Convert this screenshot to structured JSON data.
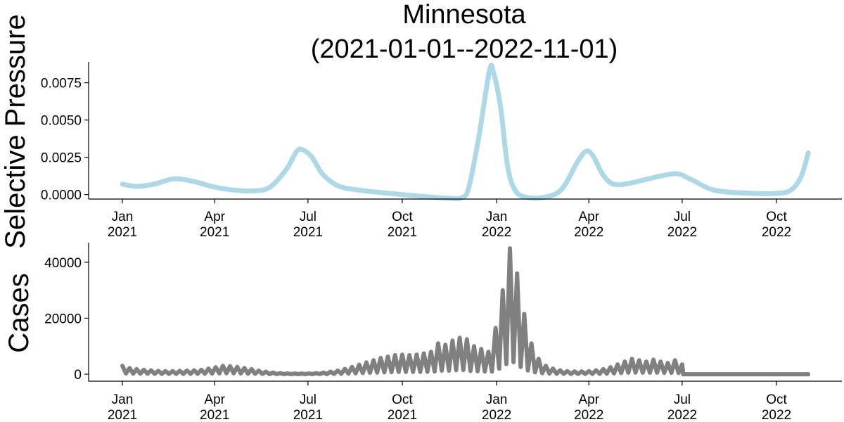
{
  "title": [
    "Minnesota",
    "(2021-01-01--2022-11-01)"
  ],
  "colors": {
    "pressure": "#add8e6",
    "cases": "#808080",
    "axis": "#000000"
  },
  "chart_data": [
    {
      "type": "line",
      "ylabel": "Selective Pressure",
      "ylim": [
        -0.0003,
        0.0089
      ],
      "yticks": [
        "0.0000",
        "0.0025",
        "0.0050",
        "0.0075"
      ],
      "xticks": [
        {
          "date": "2021-01-01",
          "label": [
            "Jan",
            "2021"
          ]
        },
        {
          "date": "2021-04-01",
          "label": [
            "Apr",
            "2021"
          ]
        },
        {
          "date": "2021-07-01",
          "label": [
            "Jul",
            "2021"
          ]
        },
        {
          "date": "2021-10-01",
          "label": [
            "Oct",
            "2021"
          ]
        },
        {
          "date": "2022-01-01",
          "label": [
            "Jan",
            "2022"
          ]
        },
        {
          "date": "2022-04-01",
          "label": [
            "Apr",
            "2022"
          ]
        },
        {
          "date": "2022-07-01",
          "label": [
            "Jul",
            "2022"
          ]
        },
        {
          "date": "2022-10-01",
          "label": [
            "Oct",
            "2022"
          ]
        }
      ],
      "series": [
        {
          "color": "#add8e6",
          "points": [
            [
              "2021-01-01",
              0.0007
            ],
            [
              "2021-01-15",
              0.00055
            ],
            [
              "2021-02-01",
              0.0007
            ],
            [
              "2021-02-20",
              0.00105
            ],
            [
              "2021-03-10",
              0.0009
            ],
            [
              "2021-04-01",
              0.0005
            ],
            [
              "2021-04-20",
              0.0003
            ],
            [
              "2021-05-10",
              0.00025
            ],
            [
              "2021-05-25",
              0.0005
            ],
            [
              "2021-06-10",
              0.0017
            ],
            [
              "2021-06-20",
              0.0029
            ],
            [
              "2021-06-26",
              0.003
            ],
            [
              "2021-07-05",
              0.0025
            ],
            [
              "2021-07-15",
              0.0014
            ],
            [
              "2021-07-30",
              0.0006
            ],
            [
              "2021-08-20",
              0.0003
            ],
            [
              "2021-10-01",
              0.0
            ],
            [
              "2021-11-15",
              -0.00025
            ],
            [
              "2021-11-28",
              -0.0002
            ],
            [
              "2021-12-05",
              0.0005
            ],
            [
              "2021-12-15",
              0.004
            ],
            [
              "2021-12-25",
              0.0083
            ],
            [
              "2021-12-29",
              0.0082
            ],
            [
              "2022-01-05",
              0.0058
            ],
            [
              "2022-01-12",
              0.0018
            ],
            [
              "2022-01-20",
              0.0002
            ],
            [
              "2022-02-01",
              -0.0002
            ],
            [
              "2022-02-15",
              -0.0002
            ],
            [
              "2022-03-01",
              0.0001
            ],
            [
              "2022-03-10",
              0.0008
            ],
            [
              "2022-03-20",
              0.0021
            ],
            [
              "2022-03-29",
              0.0029
            ],
            [
              "2022-04-05",
              0.0026
            ],
            [
              "2022-04-15",
              0.0013
            ],
            [
              "2022-04-25",
              0.0007
            ],
            [
              "2022-05-10",
              0.00075
            ],
            [
              "2022-06-01",
              0.0011
            ],
            [
              "2022-06-25",
              0.0014
            ],
            [
              "2022-07-10",
              0.001
            ],
            [
              "2022-08-01",
              0.0003
            ],
            [
              "2022-09-01",
              0.0001
            ],
            [
              "2022-10-01",
              8e-05
            ],
            [
              "2022-10-15",
              0.0003
            ],
            [
              "2022-10-25",
              0.0012
            ],
            [
              "2022-11-01",
              0.0028
            ]
          ]
        }
      ]
    },
    {
      "type": "line",
      "ylabel": "Cases",
      "ylim": [
        -2500,
        47000
      ],
      "yticks": [
        "0",
        "20000",
        "40000"
      ],
      "xticks": [
        {
          "date": "2021-01-01",
          "label": [
            "Jan",
            "2021"
          ]
        },
        {
          "date": "2021-04-01",
          "label": [
            "Apr",
            "2021"
          ]
        },
        {
          "date": "2021-07-01",
          "label": [
            "Jul",
            "2021"
          ]
        },
        {
          "date": "2021-10-01",
          "label": [
            "Oct",
            "2021"
          ]
        },
        {
          "date": "2022-01-01",
          "label": [
            "Jan",
            "2022"
          ]
        },
        {
          "date": "2022-04-01",
          "label": [
            "Apr",
            "2022"
          ]
        },
        {
          "date": "2022-07-01",
          "label": [
            "Jul",
            "2022"
          ]
        },
        {
          "date": "2022-10-01",
          "label": [
            "Oct",
            "2022"
          ]
        }
      ],
      "series": [
        {
          "color": "#808080",
          "description_of_pattern": "weekly reporting spikes",
          "weekly_peaks": [
            [
              "2021-01-01",
              3000
            ],
            [
              "2021-01-08",
              2200
            ],
            [
              "2021-01-15",
              1800
            ],
            [
              "2021-01-22",
              1600
            ],
            [
              "2021-01-29",
              1400
            ],
            [
              "2021-02-05",
              1200
            ],
            [
              "2021-02-12",
              1100
            ],
            [
              "2021-02-19",
              1100
            ],
            [
              "2021-02-26",
              1200
            ],
            [
              "2021-03-05",
              1300
            ],
            [
              "2021-03-12",
              1400
            ],
            [
              "2021-03-19",
              1600
            ],
            [
              "2021-03-26",
              2000
            ],
            [
              "2021-04-02",
              2500
            ],
            [
              "2021-04-09",
              3000
            ],
            [
              "2021-04-16",
              2900
            ],
            [
              "2021-04-23",
              2600
            ],
            [
              "2021-04-30",
              2200
            ],
            [
              "2021-05-07",
              1800
            ],
            [
              "2021-05-14",
              1300
            ],
            [
              "2021-05-21",
              900
            ],
            [
              "2021-05-28",
              600
            ],
            [
              "2021-06-04",
              400
            ],
            [
              "2021-06-11",
              300
            ],
            [
              "2021-06-18",
              250
            ],
            [
              "2021-06-25",
              250
            ],
            [
              "2021-07-02",
              300
            ],
            [
              "2021-07-09",
              400
            ],
            [
              "2021-07-16",
              600
            ],
            [
              "2021-07-23",
              900
            ],
            [
              "2021-07-30",
              1300
            ],
            [
              "2021-08-06",
              1900
            ],
            [
              "2021-08-13",
              2600
            ],
            [
              "2021-08-20",
              3400
            ],
            [
              "2021-08-27",
              4200
            ],
            [
              "2021-09-03",
              5000
            ],
            [
              "2021-09-10",
              5800
            ],
            [
              "2021-09-17",
              6300
            ],
            [
              "2021-09-24",
              6800
            ],
            [
              "2021-10-01",
              7000
            ],
            [
              "2021-10-08",
              6800
            ],
            [
              "2021-10-15",
              7000
            ],
            [
              "2021-10-22",
              7400
            ],
            [
              "2021-10-29",
              8000
            ],
            [
              "2021-11-05",
              11000
            ],
            [
              "2021-11-12",
              10500
            ],
            [
              "2021-11-19",
              12000
            ],
            [
              "2021-11-26",
              13000
            ],
            [
              "2021-12-03",
              12500
            ],
            [
              "2021-12-10",
              10000
            ],
            [
              "2021-12-17",
              9000
            ],
            [
              "2021-12-24",
              8000
            ],
            [
              "2021-12-31",
              16500
            ],
            [
              "2022-01-07",
              30000
            ],
            [
              "2022-01-14",
              45000
            ],
            [
              "2022-01-21",
              36000
            ],
            [
              "2022-01-28",
              21500
            ],
            [
              "2022-02-04",
              11000
            ],
            [
              "2022-02-11",
              5500
            ],
            [
              "2022-02-18",
              3000
            ],
            [
              "2022-02-25",
              2000
            ],
            [
              "2022-03-04",
              1400
            ],
            [
              "2022-03-11",
              1100
            ],
            [
              "2022-03-18",
              1000
            ],
            [
              "2022-03-25",
              1000
            ],
            [
              "2022-04-01",
              1100
            ],
            [
              "2022-04-08",
              1400
            ],
            [
              "2022-04-15",
              1800
            ],
            [
              "2022-04-22",
              2500
            ],
            [
              "2022-04-29",
              3500
            ],
            [
              "2022-05-06",
              4500
            ],
            [
              "2022-05-13",
              5500
            ],
            [
              "2022-05-20",
              5000
            ],
            [
              "2022-05-27",
              4500
            ],
            [
              "2022-06-03",
              5200
            ],
            [
              "2022-06-10",
              4500
            ],
            [
              "2022-06-17",
              4000
            ],
            [
              "2022-06-24",
              5000
            ],
            [
              "2022-07-01",
              3500
            ],
            [
              "2022-07-02",
              0
            ],
            [
              "2022-11-01",
              0
            ]
          ]
        }
      ]
    }
  ]
}
